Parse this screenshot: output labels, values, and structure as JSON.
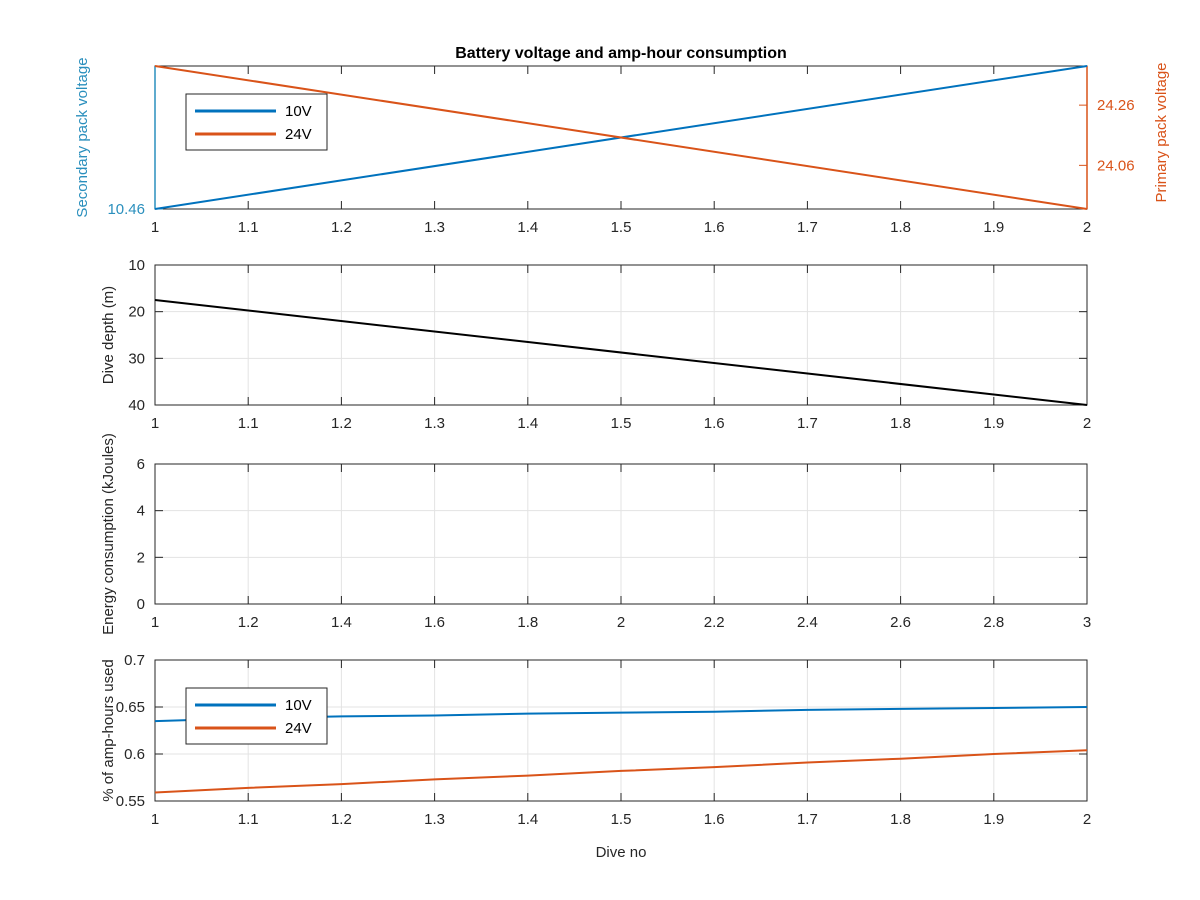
{
  "figure_title": "Battery voltage and amp-hour consumption",
  "chart_data": [
    {
      "type": "line",
      "title": "Battery voltage and amp-hour consumption",
      "xlabel": "",
      "xlim": [
        1,
        2
      ],
      "xticks": [
        "1",
        "1.1",
        "1.2",
        "1.3",
        "1.4",
        "1.5",
        "1.6",
        "1.7",
        "1.8",
        "1.9",
        "2"
      ],
      "grid": false,
      "legend_position": "top-left",
      "ylabel_left": "Secondary pack voltage",
      "ylabel_left_color": "#2a8fbd",
      "yticks_left": [
        "10.46"
      ],
      "ylim_left": [
        10.46,
        10.6
      ],
      "ylabel_right": "Primary pack voltage",
      "ylabel_right_color": "#d95319",
      "yticks_right": [
        "24.26",
        "24.06"
      ],
      "ylim_right": [
        23.915,
        24.39
      ],
      "series": [
        {
          "name": "10V",
          "axis": "left",
          "color": "#0072bd",
          "x": [
            1,
            2
          ],
          "y": [
            10.46,
            10.6
          ]
        },
        {
          "name": "24V",
          "axis": "right",
          "color": "#d95319",
          "x": [
            1,
            2
          ],
          "y": [
            24.39,
            23.915
          ]
        }
      ]
    },
    {
      "type": "line",
      "xlabel": "",
      "ylabel": "Dive depth (m)",
      "xlim": [
        1,
        2
      ],
      "ylim": [
        10,
        40
      ],
      "y_reversed": true,
      "xticks": [
        "1",
        "1.1",
        "1.2",
        "1.3",
        "1.4",
        "1.5",
        "1.6",
        "1.7",
        "1.8",
        "1.9",
        "2"
      ],
      "yticks": [
        "10",
        "20",
        "30",
        "40"
      ],
      "grid": true,
      "series": [
        {
          "color": "#000000",
          "x": [
            1,
            2
          ],
          "y": [
            17.5,
            40
          ]
        }
      ]
    },
    {
      "type": "line",
      "xlabel": "",
      "ylabel": "Energy consumption (kJoules)",
      "xlim": [
        1,
        3
      ],
      "ylim": [
        0,
        6
      ],
      "xticks": [
        "1",
        "1.2",
        "1.4",
        "1.6",
        "1.8",
        "2",
        "2.2",
        "2.4",
        "2.6",
        "2.8",
        "3"
      ],
      "yticks": [
        "0",
        "2",
        "4",
        "6"
      ],
      "grid": true,
      "series": []
    },
    {
      "type": "line",
      "xlabel": "Dive no",
      "ylabel": "% of amp-hours used",
      "xlim": [
        1,
        2
      ],
      "ylim": [
        0.55,
        0.7
      ],
      "xticks": [
        "1",
        "1.1",
        "1.2",
        "1.3",
        "1.4",
        "1.5",
        "1.6",
        "1.7",
        "1.8",
        "1.9",
        "2"
      ],
      "yticks": [
        "0.55",
        "0.6",
        "0.65",
        "0.7"
      ],
      "grid": true,
      "legend_position": "top-left",
      "series": [
        {
          "name": "10V",
          "color": "#0072bd",
          "x": [
            1,
            1.1,
            1.2,
            1.3,
            1.4,
            1.5,
            1.6,
            1.7,
            1.8,
            1.9,
            2
          ],
          "y": [
            0.635,
            0.638,
            0.64,
            0.641,
            0.643,
            0.644,
            0.645,
            0.647,
            0.648,
            0.649,
            0.65
          ]
        },
        {
          "name": "24V",
          "color": "#d95319",
          "x": [
            1,
            1.1,
            1.2,
            1.3,
            1.4,
            1.5,
            1.6,
            1.7,
            1.8,
            1.9,
            2
          ],
          "y": [
            0.559,
            0.564,
            0.568,
            0.573,
            0.577,
            0.582,
            0.586,
            0.591,
            0.595,
            0.6,
            0.604
          ]
        }
      ]
    }
  ]
}
